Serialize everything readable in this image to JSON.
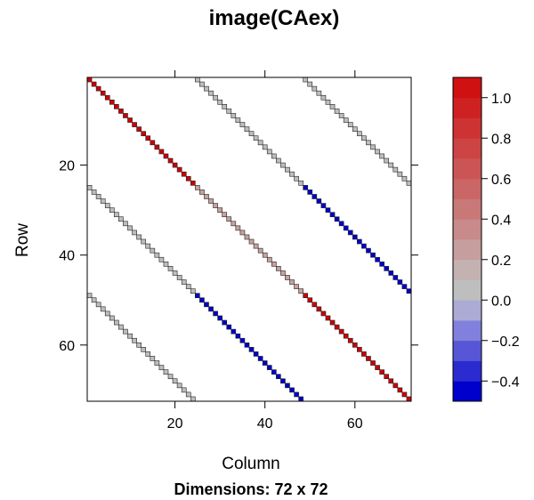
{
  "chart_data": {
    "type": "heatmap",
    "title": "image(CAex)",
    "subtitle": "Dimensions: 72 x 72",
    "xlabel": "Column",
    "ylabel": "Row",
    "xticks": [
      20,
      40,
      60
    ],
    "yticks": [
      20,
      40,
      60
    ],
    "xlim": [
      0.5,
      72.5
    ],
    "ylim": [
      72.5,
      0.5
    ],
    "n_rows": 72,
    "n_cols": 72,
    "nonzero_color": "#bdbdbd",
    "band_color": "#ffffff",
    "colorbar": {
      "breaks": [
        -0.5,
        -0.4,
        -0.3,
        -0.2,
        -0.1,
        0.0,
        0.1,
        0.2,
        0.3,
        0.4,
        0.5,
        0.6,
        0.7,
        0.8,
        0.9,
        1.0,
        1.1
      ],
      "colors": [
        "#0000cc",
        "#2b2bd0",
        "#5656d6",
        "#8181dd",
        "#ababd6",
        "#bebebe",
        "#c4b2b2",
        "#c69e9e",
        "#c88a8a",
        "#c97878",
        "#ca6666",
        "#cb5555",
        "#cc4444",
        "#cd3333",
        "#ce2222",
        "#cf1111"
      ],
      "tick_values": [
        -0.4,
        -0.2,
        0.0,
        0.2,
        0.4,
        0.6,
        0.8,
        1.0
      ],
      "tick_labels": [
        "−0.4",
        "−0.2",
        "0.0",
        "0.2",
        "0.4",
        "0.6",
        "0.8",
        "1.0"
      ]
    },
    "diagonals": [
      {
        "offset": 0,
        "segments": [
          {
            "rows": [
              1,
              24
            ],
            "value": 1.0,
            "color": "#cc0000"
          },
          {
            "rows": [
              25,
              48
            ],
            "value": 0.2,
            "color": "#c8a0a0"
          },
          {
            "rows": [
              49,
              72
            ],
            "value": 1.0,
            "color": "#cc0000"
          }
        ]
      },
      {
        "offset": 24,
        "segments": [
          {
            "rows": [
              1,
              24
            ],
            "value": 0.0,
            "color": "#bdbdbd"
          },
          {
            "rows": [
              25,
              48
            ],
            "value": -0.5,
            "color": "#0000cc"
          }
        ]
      },
      {
        "offset": 48,
        "segments": [
          {
            "rows": [
              1,
              24
            ],
            "value": 0.0,
            "color": "#bdbdbd"
          }
        ]
      },
      {
        "offset": -24,
        "segments": [
          {
            "rows": [
              25,
              48
            ],
            "value": 0.0,
            "color": "#bdbdbd"
          },
          {
            "rows": [
              49,
              72
            ],
            "value": -0.5,
            "color": "#0000cc"
          }
        ]
      },
      {
        "offset": -48,
        "segments": [
          {
            "rows": [
              49,
              72
            ],
            "value": 0.0,
            "color": "#bdbdbd"
          }
        ]
      }
    ]
  }
}
